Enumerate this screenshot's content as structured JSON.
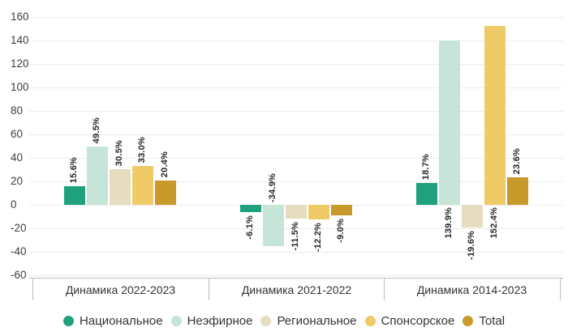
{
  "chart_data": {
    "type": "bar",
    "categories": [
      "Динамика 2022-2023",
      "Динамика 2021-2022",
      "Динамика 2014-2023"
    ],
    "series": [
      {
        "name": "Национальное",
        "color": "#1fa17e",
        "values": [
          15.6,
          -6.1,
          18.7
        ],
        "labels": [
          "15.6%",
          "-6.1%",
          "18.7%"
        ]
      },
      {
        "name": "Неэфирное",
        "color": "#c6e4d8",
        "values": [
          49.5,
          -34.9,
          139.9
        ],
        "labels": [
          "49.5%",
          "-34.9%",
          "139.9%"
        ]
      },
      {
        "name": "Региональное",
        "color": "#e6ddc1",
        "values": [
          30.5,
          -11.5,
          -19.6
        ],
        "labels": [
          "30.5%",
          "-11.5%",
          "-19.6%"
        ]
      },
      {
        "name": "Спонсорское",
        "color": "#efca67",
        "values": [
          33.0,
          -12.2,
          152.4
        ],
        "labels": [
          "33.0%",
          "-12.2%",
          "152.4%"
        ]
      },
      {
        "name": "Total",
        "color": "#c8992b",
        "values": [
          20.4,
          -9.0,
          23.6
        ],
        "labels": [
          "20.4%",
          "-9.0%",
          "23.6%"
        ]
      }
    ],
    "y_ticks": [
      160,
      140,
      120,
      100,
      80,
      60,
      40,
      20,
      0,
      -20,
      -40,
      -60
    ],
    "ylim": [
      -60,
      160
    ],
    "value_suffix": "%",
    "grid": true,
    "legend_position": "bottom",
    "title": "",
    "xlabel": "",
    "ylabel": ""
  }
}
